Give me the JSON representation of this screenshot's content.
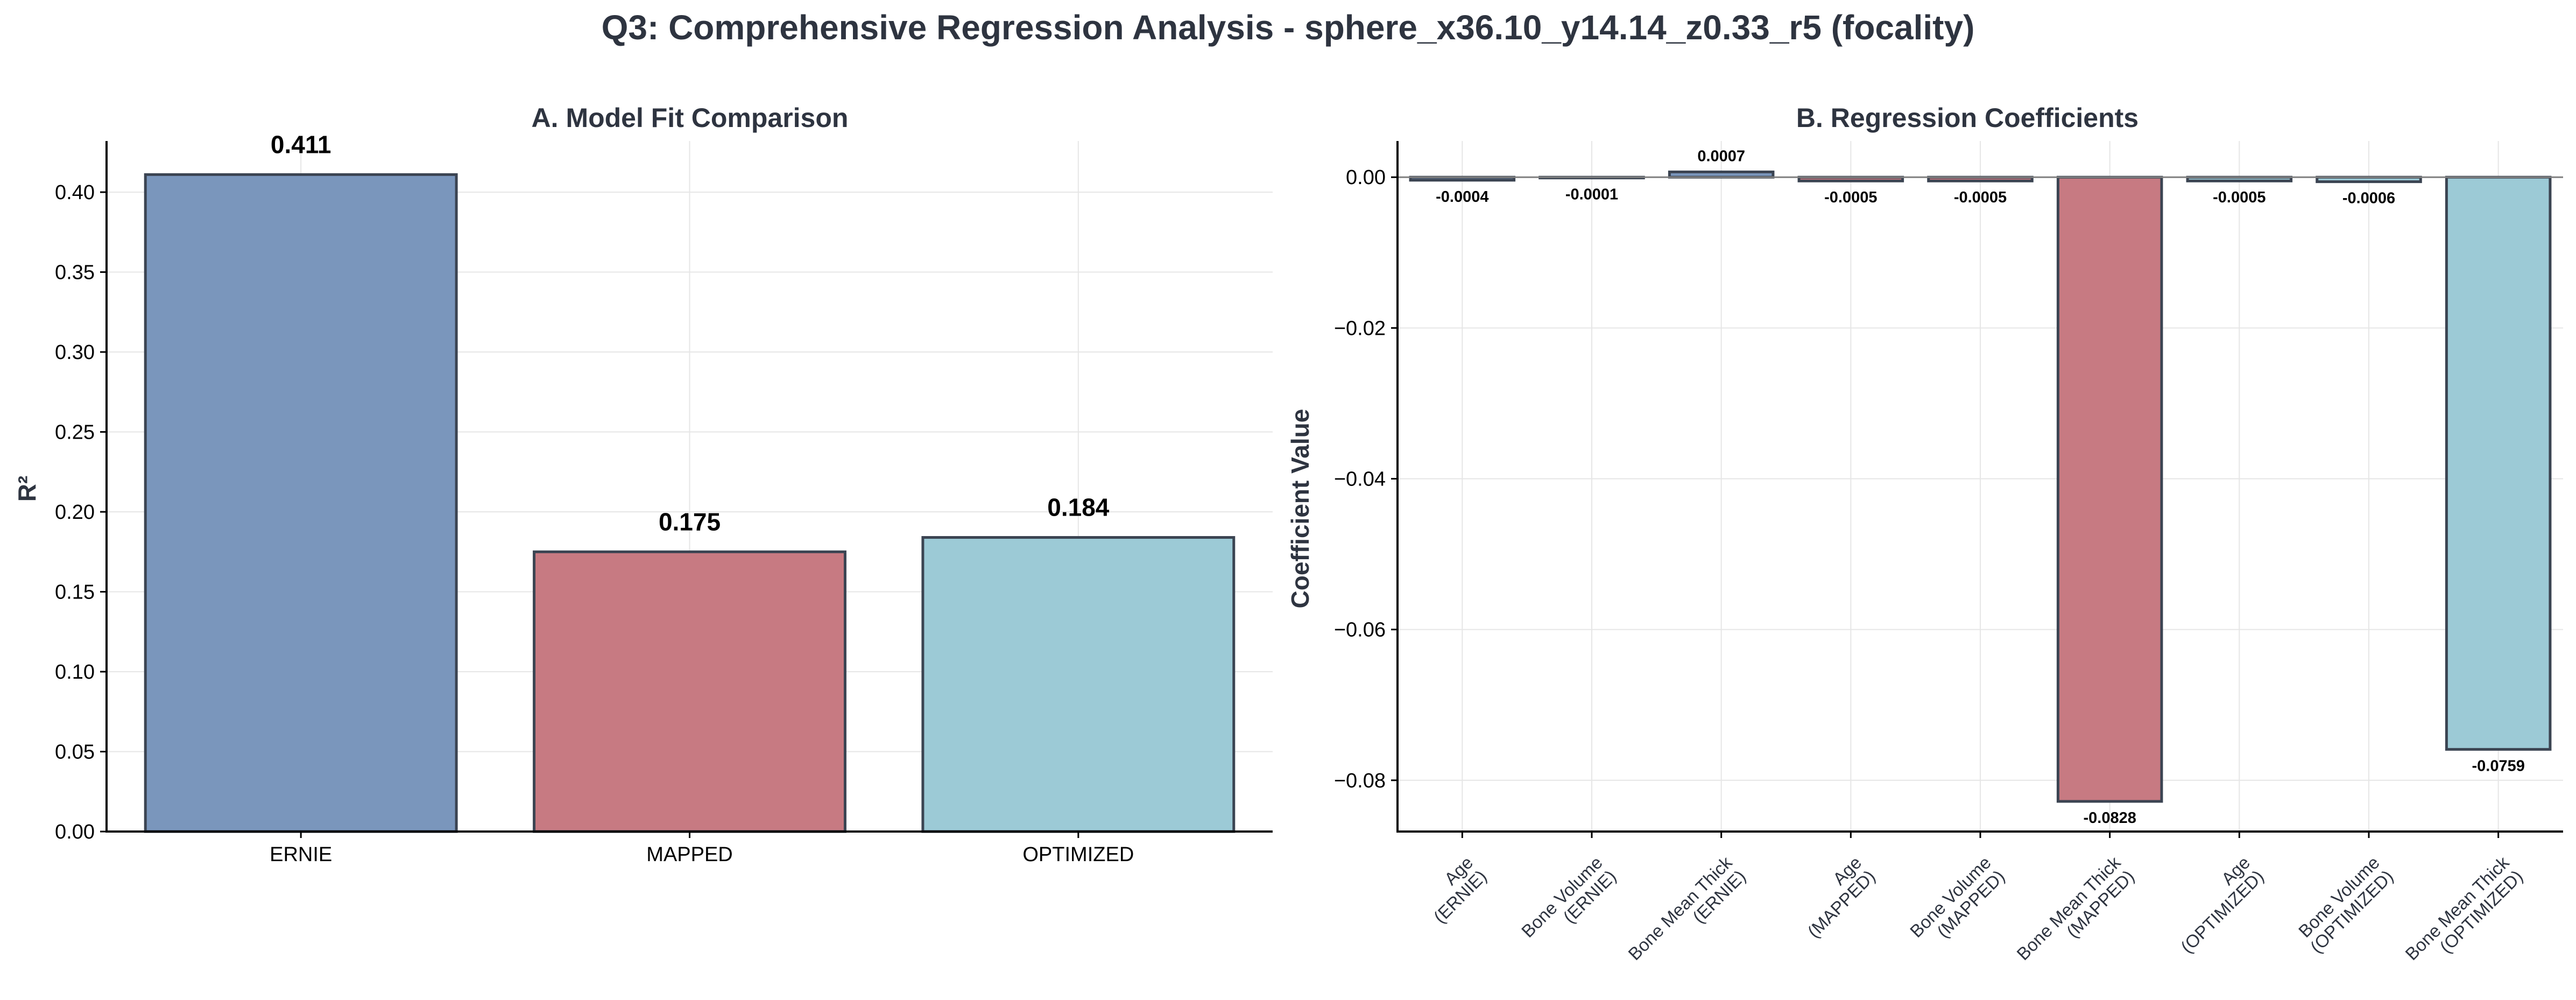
{
  "title": "Q3: Comprehensive Regression Analysis - sphere_x36.10_y14.14_z0.33_r5 (focality)",
  "colors": {
    "ERNIE": "#7a96bc",
    "MAPPED": "#c77a82",
    "OPTIMIZED": "#9ccad6",
    "bar_edge": "#3b4452",
    "zero_line": "#808080"
  },
  "chart_data": [
    {
      "type": "bar",
      "title": "A. Model Fit Comparison",
      "xlabel": "",
      "ylabel": "R²",
      "categories": [
        "ERNIE",
        "MAPPED",
        "OPTIMIZED"
      ],
      "values": [
        0.411,
        0.175,
        0.184
      ],
      "value_labels": [
        "0.411",
        "0.175",
        "0.184"
      ],
      "color_keys": [
        "ERNIE",
        "MAPPED",
        "OPTIMIZED"
      ],
      "ylim": [
        0,
        0.432
      ],
      "yticks": [
        0.0,
        0.05,
        0.1,
        0.15,
        0.2,
        0.25,
        0.3,
        0.35,
        0.4
      ],
      "ytick_labels": [
        "0.00",
        "0.05",
        "0.10",
        "0.15",
        "0.20",
        "0.25",
        "0.30",
        "0.35",
        "0.40"
      ],
      "grid": true
    },
    {
      "type": "bar",
      "title": "B. Regression Coefficients",
      "xlabel": "",
      "ylabel": "Coefficient Value",
      "categories": [
        [
          "Age",
          "(ERNIE)"
        ],
        [
          "Bone Volume",
          "(ERNIE)"
        ],
        [
          "Bone Mean Thick",
          "(ERNIE)"
        ],
        [
          "Age",
          "(MAPPED)"
        ],
        [
          "Bone Volume",
          "(MAPPED)"
        ],
        [
          "Bone Mean Thick",
          "(MAPPED)"
        ],
        [
          "Age",
          "(OPTIMIZED)"
        ],
        [
          "Bone Volume",
          "(OPTIMIZED)"
        ],
        [
          "Bone Mean Thick",
          "(OPTIMIZED)"
        ]
      ],
      "values": [
        -0.0004,
        -0.0001,
        0.0007,
        -0.0005,
        -0.0005,
        -0.0828,
        -0.0005,
        -0.0006,
        -0.0759
      ],
      "value_labels": [
        "-0.0004",
        "-0.0001",
        "0.0007",
        "-0.0005",
        "-0.0005",
        "-0.0828",
        "-0.0005",
        "-0.0006",
        "-0.0759"
      ],
      "color_keys": [
        "ERNIE",
        "ERNIE",
        "ERNIE",
        "MAPPED",
        "MAPPED",
        "MAPPED",
        "OPTIMIZED",
        "OPTIMIZED",
        "OPTIMIZED"
      ],
      "ylim": [
        -0.0868,
        0.0048
      ],
      "yticks": [
        0.0,
        -0.02,
        -0.04,
        -0.06,
        -0.08
      ],
      "ytick_labels": [
        "0.00",
        "−0.02",
        "−0.04",
        "−0.06",
        "−0.08"
      ],
      "zero_line": true,
      "grid": true
    }
  ]
}
